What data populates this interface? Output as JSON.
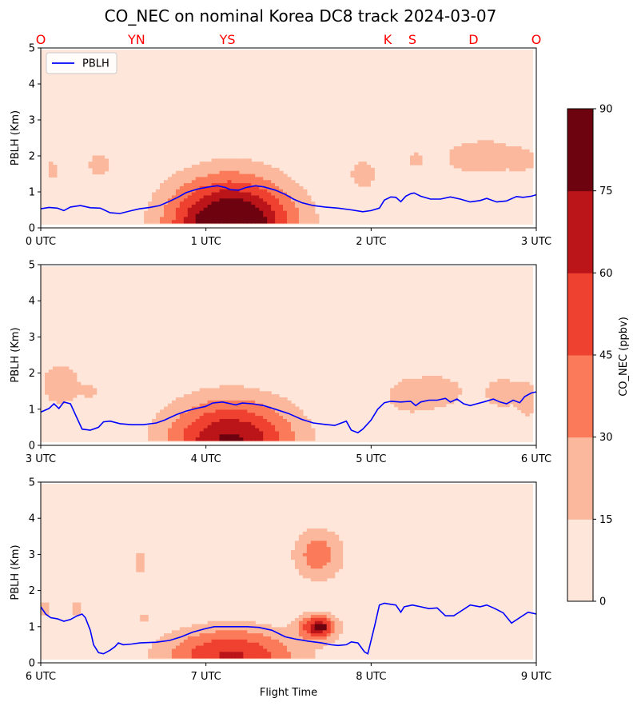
{
  "figure": {
    "title": "CO_NEC on nominal Korea DC8 track 2024-03-07",
    "xlabel": "Flight Time",
    "colorbar_label": "CO_NEC (ppbv)",
    "legend_label": "PBLH"
  },
  "colors": {
    "levels": [
      "#fee6da",
      "#fcb89c",
      "#fb7a59",
      "#ef4130",
      "#bb1419",
      "#6e0310"
    ],
    "pblh_line": "#0000ff",
    "site_labels": "#ff0000"
  },
  "chart_data": [
    {
      "type": "contour",
      "ylabel": "PBLH (Km)",
      "ylim": [
        0,
        5
      ],
      "yticks": [
        "0",
        "1",
        "2",
        "3",
        "4",
        "5"
      ],
      "xlim": [
        0,
        3
      ],
      "xtick_labels": [
        "0 UTC",
        "1 UTC",
        "2 UTC",
        "3 UTC"
      ],
      "site_labels": [
        {
          "label": "O",
          "t": 0.0
        },
        {
          "label": "YN",
          "t": 0.58
        },
        {
          "label": "YS",
          "t": 1.13
        },
        {
          "label": "K",
          "t": 2.1
        },
        {
          "label": "S",
          "t": 2.25
        },
        {
          "label": "D",
          "t": 2.62
        },
        {
          "label": "O",
          "t": 3.0
        }
      ],
      "legend": "upper-left",
      "pblh": [
        [
          0,
          0.53
        ],
        [
          0.05,
          0.57
        ],
        [
          0.1,
          0.55
        ],
        [
          0.14,
          0.48
        ],
        [
          0.18,
          0.58
        ],
        [
          0.24,
          0.62
        ],
        [
          0.3,
          0.56
        ],
        [
          0.36,
          0.55
        ],
        [
          0.42,
          0.42
        ],
        [
          0.48,
          0.4
        ],
        [
          0.55,
          0.48
        ],
        [
          0.6,
          0.53
        ],
        [
          0.66,
          0.57
        ],
        [
          0.72,
          0.62
        ],
        [
          0.78,
          0.74
        ],
        [
          0.83,
          0.85
        ],
        [
          0.88,
          0.98
        ],
        [
          0.95,
          1.08
        ],
        [
          1.02,
          1.14
        ],
        [
          1.07,
          1.17
        ],
        [
          1.12,
          1.12
        ],
        [
          1.15,
          1.06
        ],
        [
          1.2,
          1.05
        ],
        [
          1.24,
          1.12
        ],
        [
          1.3,
          1.17
        ],
        [
          1.35,
          1.14
        ],
        [
          1.42,
          1.05
        ],
        [
          1.48,
          0.93
        ],
        [
          1.53,
          0.8
        ],
        [
          1.58,
          0.7
        ],
        [
          1.65,
          0.62
        ],
        [
          1.72,
          0.58
        ],
        [
          1.8,
          0.55
        ],
        [
          1.88,
          0.5
        ],
        [
          1.95,
          0.45
        ],
        [
          2.0,
          0.48
        ],
        [
          2.05,
          0.55
        ],
        [
          2.08,
          0.77
        ],
        [
          2.12,
          0.86
        ],
        [
          2.15,
          0.85
        ],
        [
          2.18,
          0.73
        ],
        [
          2.21,
          0.88
        ],
        [
          2.24,
          0.95
        ],
        [
          2.26,
          0.97
        ],
        [
          2.3,
          0.88
        ],
        [
          2.36,
          0.8
        ],
        [
          2.42,
          0.8
        ],
        [
          2.48,
          0.86
        ],
        [
          2.54,
          0.8
        ],
        [
          2.6,
          0.72
        ],
        [
          2.66,
          0.76
        ],
        [
          2.7,
          0.82
        ],
        [
          2.76,
          0.72
        ],
        [
          2.82,
          0.75
        ],
        [
          2.88,
          0.87
        ],
        [
          2.92,
          0.85
        ],
        [
          2.97,
          0.88
        ],
        [
          3.0,
          0.92
        ]
      ],
      "blobs": [
        {
          "t": 1.15,
          "z": 0.05,
          "sx": 0.38,
          "sz": 1.35,
          "peak": 104
        },
        {
          "t": 0.07,
          "z": 1.6,
          "sx": 0.045,
          "sz": 0.35,
          "peak": 22
        },
        {
          "t": 0.35,
          "z": 1.75,
          "sx": 0.09,
          "sz": 0.4,
          "peak": 22
        },
        {
          "t": 1.95,
          "z": 1.5,
          "sx": 0.1,
          "sz": 0.55,
          "peak": 22
        },
        {
          "t": 2.27,
          "z": 1.9,
          "sx": 0.07,
          "sz": 0.35,
          "peak": 19
        },
        {
          "t": 2.55,
          "z": 1.95,
          "sx": 0.15,
          "sz": 0.45,
          "peak": 19
        },
        {
          "t": 2.72,
          "z": 2.0,
          "sx": 0.15,
          "sz": 0.55,
          "peak": 22
        },
        {
          "t": 2.93,
          "z": 1.9,
          "sx": 0.12,
          "sz": 0.45,
          "peak": 19
        }
      ]
    },
    {
      "type": "contour",
      "ylabel": "PBLH (Km)",
      "ylim": [
        0,
        5
      ],
      "yticks": [
        "0",
        "1",
        "2",
        "3",
        "4",
        "5"
      ],
      "xlim": [
        3,
        6
      ],
      "xtick_labels": [
        "3 UTC",
        "4 UTC",
        "5 UTC",
        "6 UTC"
      ],
      "pblh": [
        [
          3.0,
          0.92
        ],
        [
          3.05,
          1.02
        ],
        [
          3.08,
          1.15
        ],
        [
          3.11,
          1.02
        ],
        [
          3.14,
          1.2
        ],
        [
          3.18,
          1.15
        ],
        [
          3.2,
          0.95
        ],
        [
          3.25,
          0.45
        ],
        [
          3.3,
          0.42
        ],
        [
          3.35,
          0.5
        ],
        [
          3.38,
          0.65
        ],
        [
          3.42,
          0.67
        ],
        [
          3.48,
          0.6
        ],
        [
          3.55,
          0.57
        ],
        [
          3.62,
          0.57
        ],
        [
          3.7,
          0.62
        ],
        [
          3.75,
          0.7
        ],
        [
          3.82,
          0.85
        ],
        [
          3.88,
          0.95
        ],
        [
          3.94,
          1.02
        ],
        [
          4.0,
          1.08
        ],
        [
          4.04,
          1.17
        ],
        [
          4.1,
          1.2
        ],
        [
          4.15,
          1.15
        ],
        [
          4.18,
          1.12
        ],
        [
          4.22,
          1.17
        ],
        [
          4.28,
          1.15
        ],
        [
          4.35,
          1.1
        ],
        [
          4.42,
          1.0
        ],
        [
          4.5,
          0.88
        ],
        [
          4.58,
          0.72
        ],
        [
          4.65,
          0.62
        ],
        [
          4.72,
          0.58
        ],
        [
          4.78,
          0.55
        ],
        [
          4.82,
          0.62
        ],
        [
          4.85,
          0.67
        ],
        [
          4.88,
          0.42
        ],
        [
          4.92,
          0.35
        ],
        [
          4.95,
          0.45
        ],
        [
          5.0,
          0.7
        ],
        [
          5.04,
          1.0
        ],
        [
          5.08,
          1.18
        ],
        [
          5.12,
          1.22
        ],
        [
          5.18,
          1.2
        ],
        [
          5.24,
          1.22
        ],
        [
          5.27,
          1.1
        ],
        [
          5.3,
          1.2
        ],
        [
          5.35,
          1.25
        ],
        [
          5.4,
          1.25
        ],
        [
          5.45,
          1.3
        ],
        [
          5.48,
          1.2
        ],
        [
          5.52,
          1.28
        ],
        [
          5.56,
          1.15
        ],
        [
          5.6,
          1.1
        ],
        [
          5.64,
          1.15
        ],
        [
          5.68,
          1.2
        ],
        [
          5.74,
          1.28
        ],
        [
          5.78,
          1.2
        ],
        [
          5.82,
          1.15
        ],
        [
          5.86,
          1.25
        ],
        [
          5.9,
          1.18
        ],
        [
          5.93,
          1.35
        ],
        [
          5.97,
          1.45
        ],
        [
          6.0,
          1.48
        ]
      ],
      "blobs": [
        {
          "t": 4.15,
          "z": 0.1,
          "sx": 0.4,
          "sz": 1.2,
          "peak": 78
        },
        {
          "t": 3.12,
          "z": 1.7,
          "sx": 0.16,
          "sz": 0.8,
          "peak": 23
        },
        {
          "t": 3.3,
          "z": 1.5,
          "sx": 0.05,
          "sz": 0.2,
          "peak": 19
        },
        {
          "t": 5.2,
          "z": 1.35,
          "sx": 0.15,
          "sz": 0.55,
          "peak": 20
        },
        {
          "t": 5.42,
          "z": 1.5,
          "sx": 0.2,
          "sz": 0.65,
          "peak": 20
        },
        {
          "t": 5.8,
          "z": 1.45,
          "sx": 0.15,
          "sz": 0.65,
          "peak": 20
        },
        {
          "t": 5.95,
          "z": 1.2,
          "sx": 0.06,
          "sz": 0.6,
          "peak": 18
        }
      ]
    },
    {
      "type": "contour",
      "ylabel": "PBLH (Km)",
      "ylim": [
        0,
        5
      ],
      "yticks": [
        "0",
        "1",
        "2",
        "3",
        "4",
        "5"
      ],
      "xlim": [
        6,
        9
      ],
      "xtick_labels": [
        "6 UTC",
        "7 UTC",
        "8 UTC",
        "9 UTC"
      ],
      "pblh": [
        [
          6.0,
          1.55
        ],
        [
          6.03,
          1.35
        ],
        [
          6.06,
          1.25
        ],
        [
          6.1,
          1.22
        ],
        [
          6.14,
          1.15
        ],
        [
          6.18,
          1.2
        ],
        [
          6.22,
          1.3
        ],
        [
          6.25,
          1.35
        ],
        [
          6.27,
          1.25
        ],
        [
          6.3,
          0.9
        ],
        [
          6.32,
          0.5
        ],
        [
          6.35,
          0.28
        ],
        [
          6.38,
          0.25
        ],
        [
          6.42,
          0.35
        ],
        [
          6.45,
          0.45
        ],
        [
          6.47,
          0.55
        ],
        [
          6.5,
          0.5
        ],
        [
          6.55,
          0.52
        ],
        [
          6.6,
          0.55
        ],
        [
          6.7,
          0.57
        ],
        [
          6.78,
          0.62
        ],
        [
          6.85,
          0.72
        ],
        [
          6.92,
          0.85
        ],
        [
          7.0,
          0.95
        ],
        [
          7.05,
          1.0
        ],
        [
          7.15,
          1.0
        ],
        [
          7.25,
          1.0
        ],
        [
          7.32,
          0.98
        ],
        [
          7.4,
          0.9
        ],
        [
          7.48,
          0.72
        ],
        [
          7.55,
          0.65
        ],
        [
          7.62,
          0.6
        ],
        [
          7.7,
          0.55
        ],
        [
          7.76,
          0.5
        ],
        [
          7.8,
          0.48
        ],
        [
          7.85,
          0.5
        ],
        [
          7.88,
          0.58
        ],
        [
          7.92,
          0.55
        ],
        [
          7.96,
          0.3
        ],
        [
          7.98,
          0.25
        ],
        [
          8.02,
          1.0
        ],
        [
          8.05,
          1.6
        ],
        [
          8.08,
          1.65
        ],
        [
          8.12,
          1.62
        ],
        [
          8.15,
          1.6
        ],
        [
          8.18,
          1.4
        ],
        [
          8.2,
          1.55
        ],
        [
          8.25,
          1.6
        ],
        [
          8.3,
          1.55
        ],
        [
          8.35,
          1.5
        ],
        [
          8.4,
          1.52
        ],
        [
          8.45,
          1.3
        ],
        [
          8.5,
          1.3
        ],
        [
          8.55,
          1.45
        ],
        [
          8.6,
          1.6
        ],
        [
          8.66,
          1.55
        ],
        [
          8.7,
          1.6
        ],
        [
          8.75,
          1.5
        ],
        [
          8.8,
          1.38
        ],
        [
          8.85,
          1.1
        ],
        [
          8.9,
          1.25
        ],
        [
          8.95,
          1.4
        ],
        [
          9.0,
          1.35
        ]
      ],
      "blobs": [
        {
          "t": 7.15,
          "z": 0.2,
          "sx": 0.42,
          "sz": 0.8,
          "peak": 62
        },
        {
          "t": 7.68,
          "z": 3.0,
          "sx": 0.16,
          "sz": 0.75,
          "peak": 39
        },
        {
          "t": 7.68,
          "z": 1.0,
          "sx": 0.11,
          "sz": 0.35,
          "peak": 68
        },
        {
          "t": 7.7,
          "z": 1.0,
          "sx": 0.022,
          "sz": 0.08,
          "peak": 50
        },
        {
          "t": 6.02,
          "z": 1.5,
          "sx": 0.05,
          "sz": 0.3,
          "peak": 22
        },
        {
          "t": 6.22,
          "z": 1.5,
          "sx": 0.05,
          "sz": 0.25,
          "peak": 22
        },
        {
          "t": 6.6,
          "z": 2.8,
          "sx": 0.04,
          "sz": 0.5,
          "peak": 21
        },
        {
          "t": 6.63,
          "z": 1.25,
          "sx": 0.04,
          "sz": 0.18,
          "peak": 19
        },
        {
          "t": 8.3,
          "z": 1.35,
          "sx": 0.015,
          "sz": 0.05,
          "peak": 18
        }
      ]
    }
  ],
  "colorbar": {
    "levels": [
      0,
      15,
      30,
      45,
      60,
      75,
      90
    ],
    "tick_labels": [
      "0",
      "15",
      "30",
      "45",
      "60",
      "75",
      "90"
    ]
  }
}
